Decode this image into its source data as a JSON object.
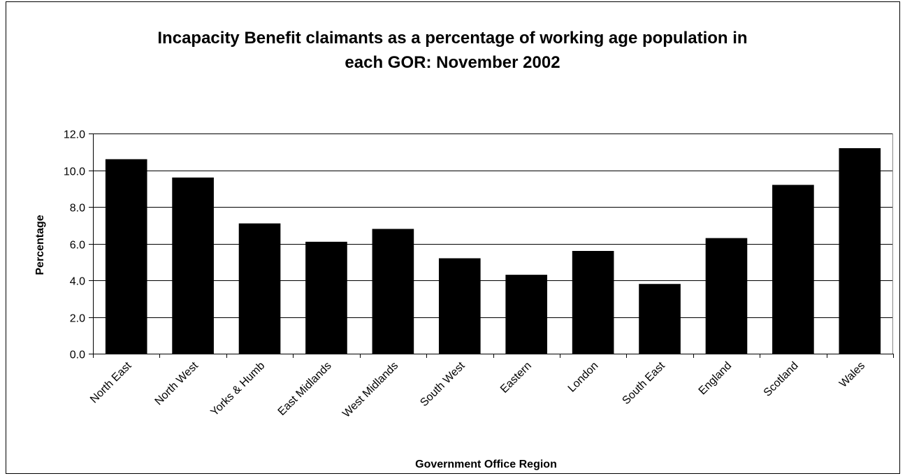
{
  "chart_data": {
    "type": "bar",
    "title": "Incapacity Benefit claimants as a percentage of working age population in\neach GOR: November 2002",
    "xlabel": "Government Office Region",
    "ylabel": "Percentage",
    "categories": [
      "North East",
      "North West",
      "Yorks & Humb",
      "East Midlands",
      "West Midlands",
      "South West",
      "Eastern",
      "London",
      "South East",
      "England",
      "Scotland",
      "Wales"
    ],
    "values": [
      10.6,
      9.6,
      7.1,
      6.1,
      6.8,
      5.2,
      4.3,
      5.6,
      3.8,
      6.3,
      9.2,
      11.2
    ],
    "ylim": [
      0,
      12
    ],
    "yticks": [
      "0.0",
      "2.0",
      "4.0",
      "6.0",
      "8.0",
      "10.0",
      "12.0"
    ],
    "grid": true,
    "legend": "none",
    "bar_color": "#000000"
  }
}
